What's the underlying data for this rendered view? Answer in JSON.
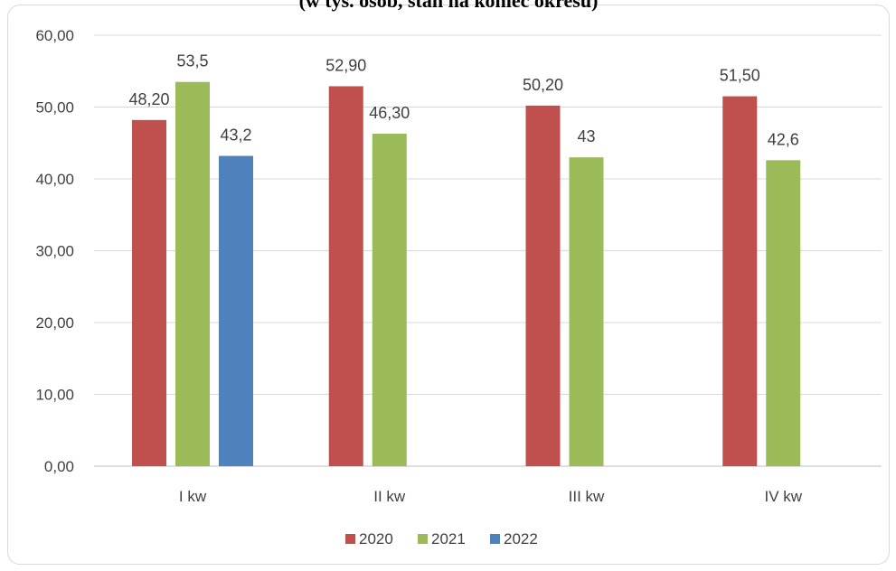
{
  "chart_data": {
    "type": "bar",
    "title": "(w tys. osób, stan na koniec okresu)",
    "categories": [
      "I kw",
      "II kw",
      "III kw",
      "IV kw"
    ],
    "series": [
      {
        "name": "2020",
        "color": "#c0504d",
        "values": [
          48.2,
          52.9,
          50.2,
          51.5
        ],
        "labels": [
          "48,20",
          "52,90",
          "50,20",
          "51,50"
        ]
      },
      {
        "name": "2021",
        "color": "#9bbb59",
        "values": [
          53.5,
          46.3,
          43,
          42.6
        ],
        "labels": [
          "53,5",
          "46,30",
          "43",
          "42,6"
        ]
      },
      {
        "name": "2022",
        "color": "#4f81bd",
        "values": [
          43.2,
          null,
          null,
          null
        ],
        "labels": [
          "43,2",
          null,
          null,
          null
        ]
      }
    ],
    "ylim": [
      0,
      60
    ],
    "yticks": [
      "0,00",
      "10,00",
      "20,00",
      "30,00",
      "40,00",
      "50,00",
      "60,00"
    ],
    "grid": true,
    "legend_position": "bottom"
  }
}
